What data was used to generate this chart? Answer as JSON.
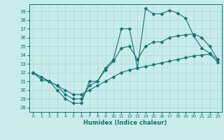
{
  "xlabel": "Humidex (Indice chaleur)",
  "bg_color": "#c8ecec",
  "grid_color": "#a8d8d8",
  "line_color": "#1a7070",
  "xlim": [
    -0.5,
    23.5
  ],
  "ylim": [
    27.5,
    39.8
  ],
  "yticks": [
    28,
    29,
    30,
    31,
    32,
    33,
    34,
    35,
    36,
    37,
    38,
    39
  ],
  "xticks": [
    0,
    1,
    2,
    3,
    4,
    5,
    6,
    7,
    8,
    9,
    10,
    11,
    12,
    13,
    14,
    15,
    16,
    17,
    18,
    19,
    20,
    21,
    22,
    23
  ],
  "line1_x": [
    0,
    1,
    2,
    3,
    4,
    5,
    6,
    7,
    8,
    9,
    10,
    11,
    12,
    13,
    14,
    15,
    16,
    17,
    18,
    19,
    20,
    21,
    22,
    23
  ],
  "line1_y": [
    32,
    31.2,
    31,
    30,
    29,
    28.5,
    28.5,
    31,
    31,
    32.5,
    33.5,
    37,
    37,
    32.5,
    39.3,
    38.7,
    38.7,
    39.1,
    38.8,
    38.2,
    36.2,
    34.8,
    34.2,
    33.5
  ],
  "line2_x": [
    0,
    2,
    3,
    4,
    5,
    6,
    7,
    8,
    9,
    10,
    11,
    12,
    13,
    14,
    15,
    16,
    17,
    18,
    19,
    20,
    21,
    22,
    23
  ],
  "line2_y": [
    32,
    31,
    30.5,
    29.5,
    29,
    29,
    30.5,
    31,
    32.3,
    33.3,
    34.8,
    35,
    33.5,
    35,
    35.5,
    35.5,
    36,
    36.2,
    36.3,
    36.4,
    36,
    35,
    33.5
  ],
  "line3_x": [
    0,
    1,
    2,
    3,
    4,
    5,
    6,
    7,
    8,
    9,
    10,
    11,
    12,
    13,
    14,
    15,
    16,
    17,
    18,
    19,
    20,
    21,
    22,
    23
  ],
  "line3_y": [
    32,
    31.5,
    31,
    30.5,
    30,
    29.5,
    29.5,
    30,
    30.5,
    31,
    31.5,
    32,
    32.3,
    32.5,
    32.7,
    32.9,
    33.1,
    33.3,
    33.5,
    33.7,
    33.9,
    34.0,
    34.1,
    33.2
  ]
}
